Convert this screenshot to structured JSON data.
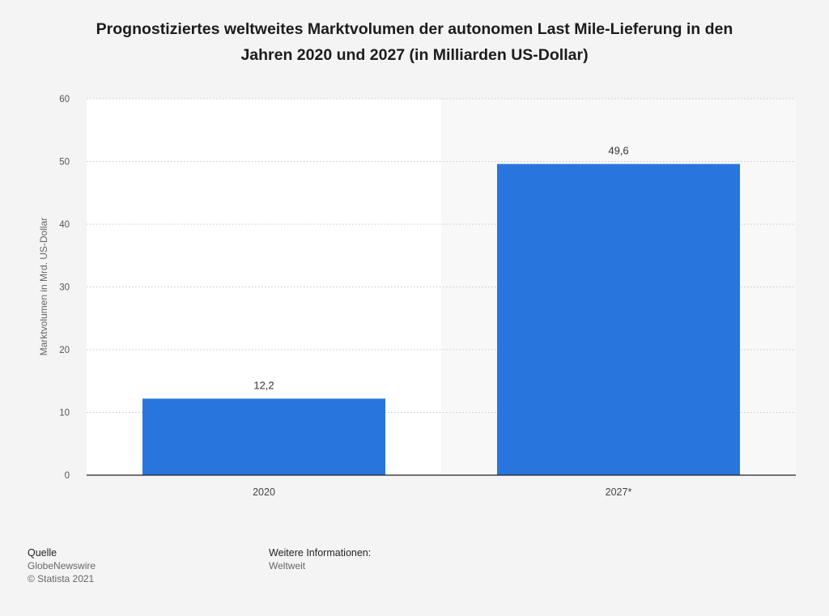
{
  "title": {
    "line1": "Prognostiziertes weltweites Marktvolumen der autonomen Last Mile-Lieferung in den",
    "line2": "Jahren 2020 und 2027 (in Milliarden US-Dollar)"
  },
  "chart_data": {
    "type": "bar",
    "categories": [
      "2020",
      "2027*"
    ],
    "values": [
      12.2,
      49.6
    ],
    "value_labels": [
      "12,2",
      "49,6"
    ],
    "ylabel": "Marktvolumen in Mrd. US-Dollar",
    "ylim": [
      0,
      60
    ],
    "yticks": [
      "0",
      "10",
      "20",
      "30",
      "40",
      "50",
      "60"
    ],
    "grid": true,
    "bar_color": "#2876dd"
  },
  "footer": {
    "source_heading": "Quelle",
    "source_name": "GlobeNewswire",
    "copyright": "© Statista 2021",
    "info_heading": "Weitere Informationen:",
    "info_text": "Weltweit"
  }
}
